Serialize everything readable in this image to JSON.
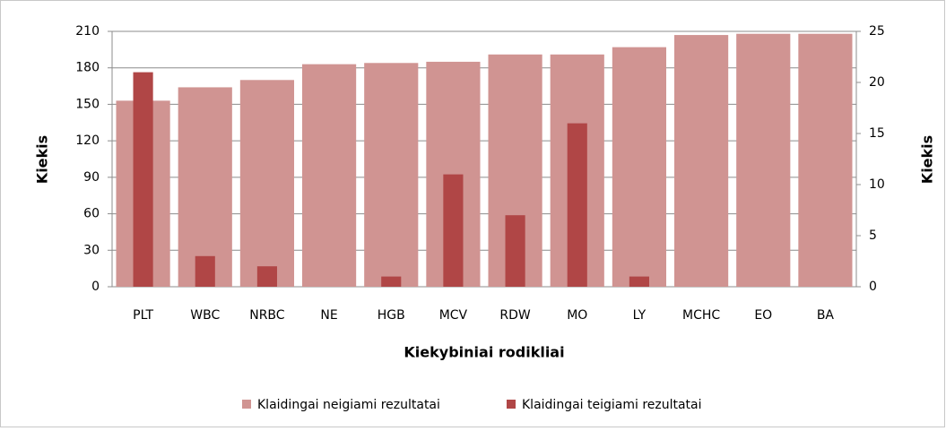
{
  "chart_data": {
    "type": "bar",
    "categories": [
      "PLT",
      "WBC",
      "NRBC",
      "NE",
      "HGB",
      "MCV",
      "RDW",
      "MO",
      "LY",
      "MCHC",
      "EO",
      "BA"
    ],
    "series": [
      {
        "name": "Klaidingai neigiami rezultatai",
        "color": "#d09492",
        "values": [
          153,
          164,
          170,
          183,
          184,
          185,
          191,
          191,
          197,
          207,
          208,
          208
        ]
      },
      {
        "name": "Klaidingai teigiami rezultatai",
        "color": "#b04646",
        "axis": "y2",
        "values": [
          21,
          3,
          2,
          0,
          1,
          11,
          7,
          16,
          1,
          0,
          0,
          0
        ]
      }
    ],
    "ylabel": "Kiekis",
    "y2label": "Kiekis",
    "xlabel": "Kiekybiniai rodikliai",
    "ylim": [
      0,
      210
    ],
    "yticks": [
      0,
      30,
      60,
      90,
      120,
      150,
      180,
      210
    ],
    "y2lim": [
      0,
      25
    ],
    "y2ticks": [
      0,
      5,
      10,
      15,
      20,
      25
    ],
    "grid": true,
    "legend": "bottom"
  }
}
